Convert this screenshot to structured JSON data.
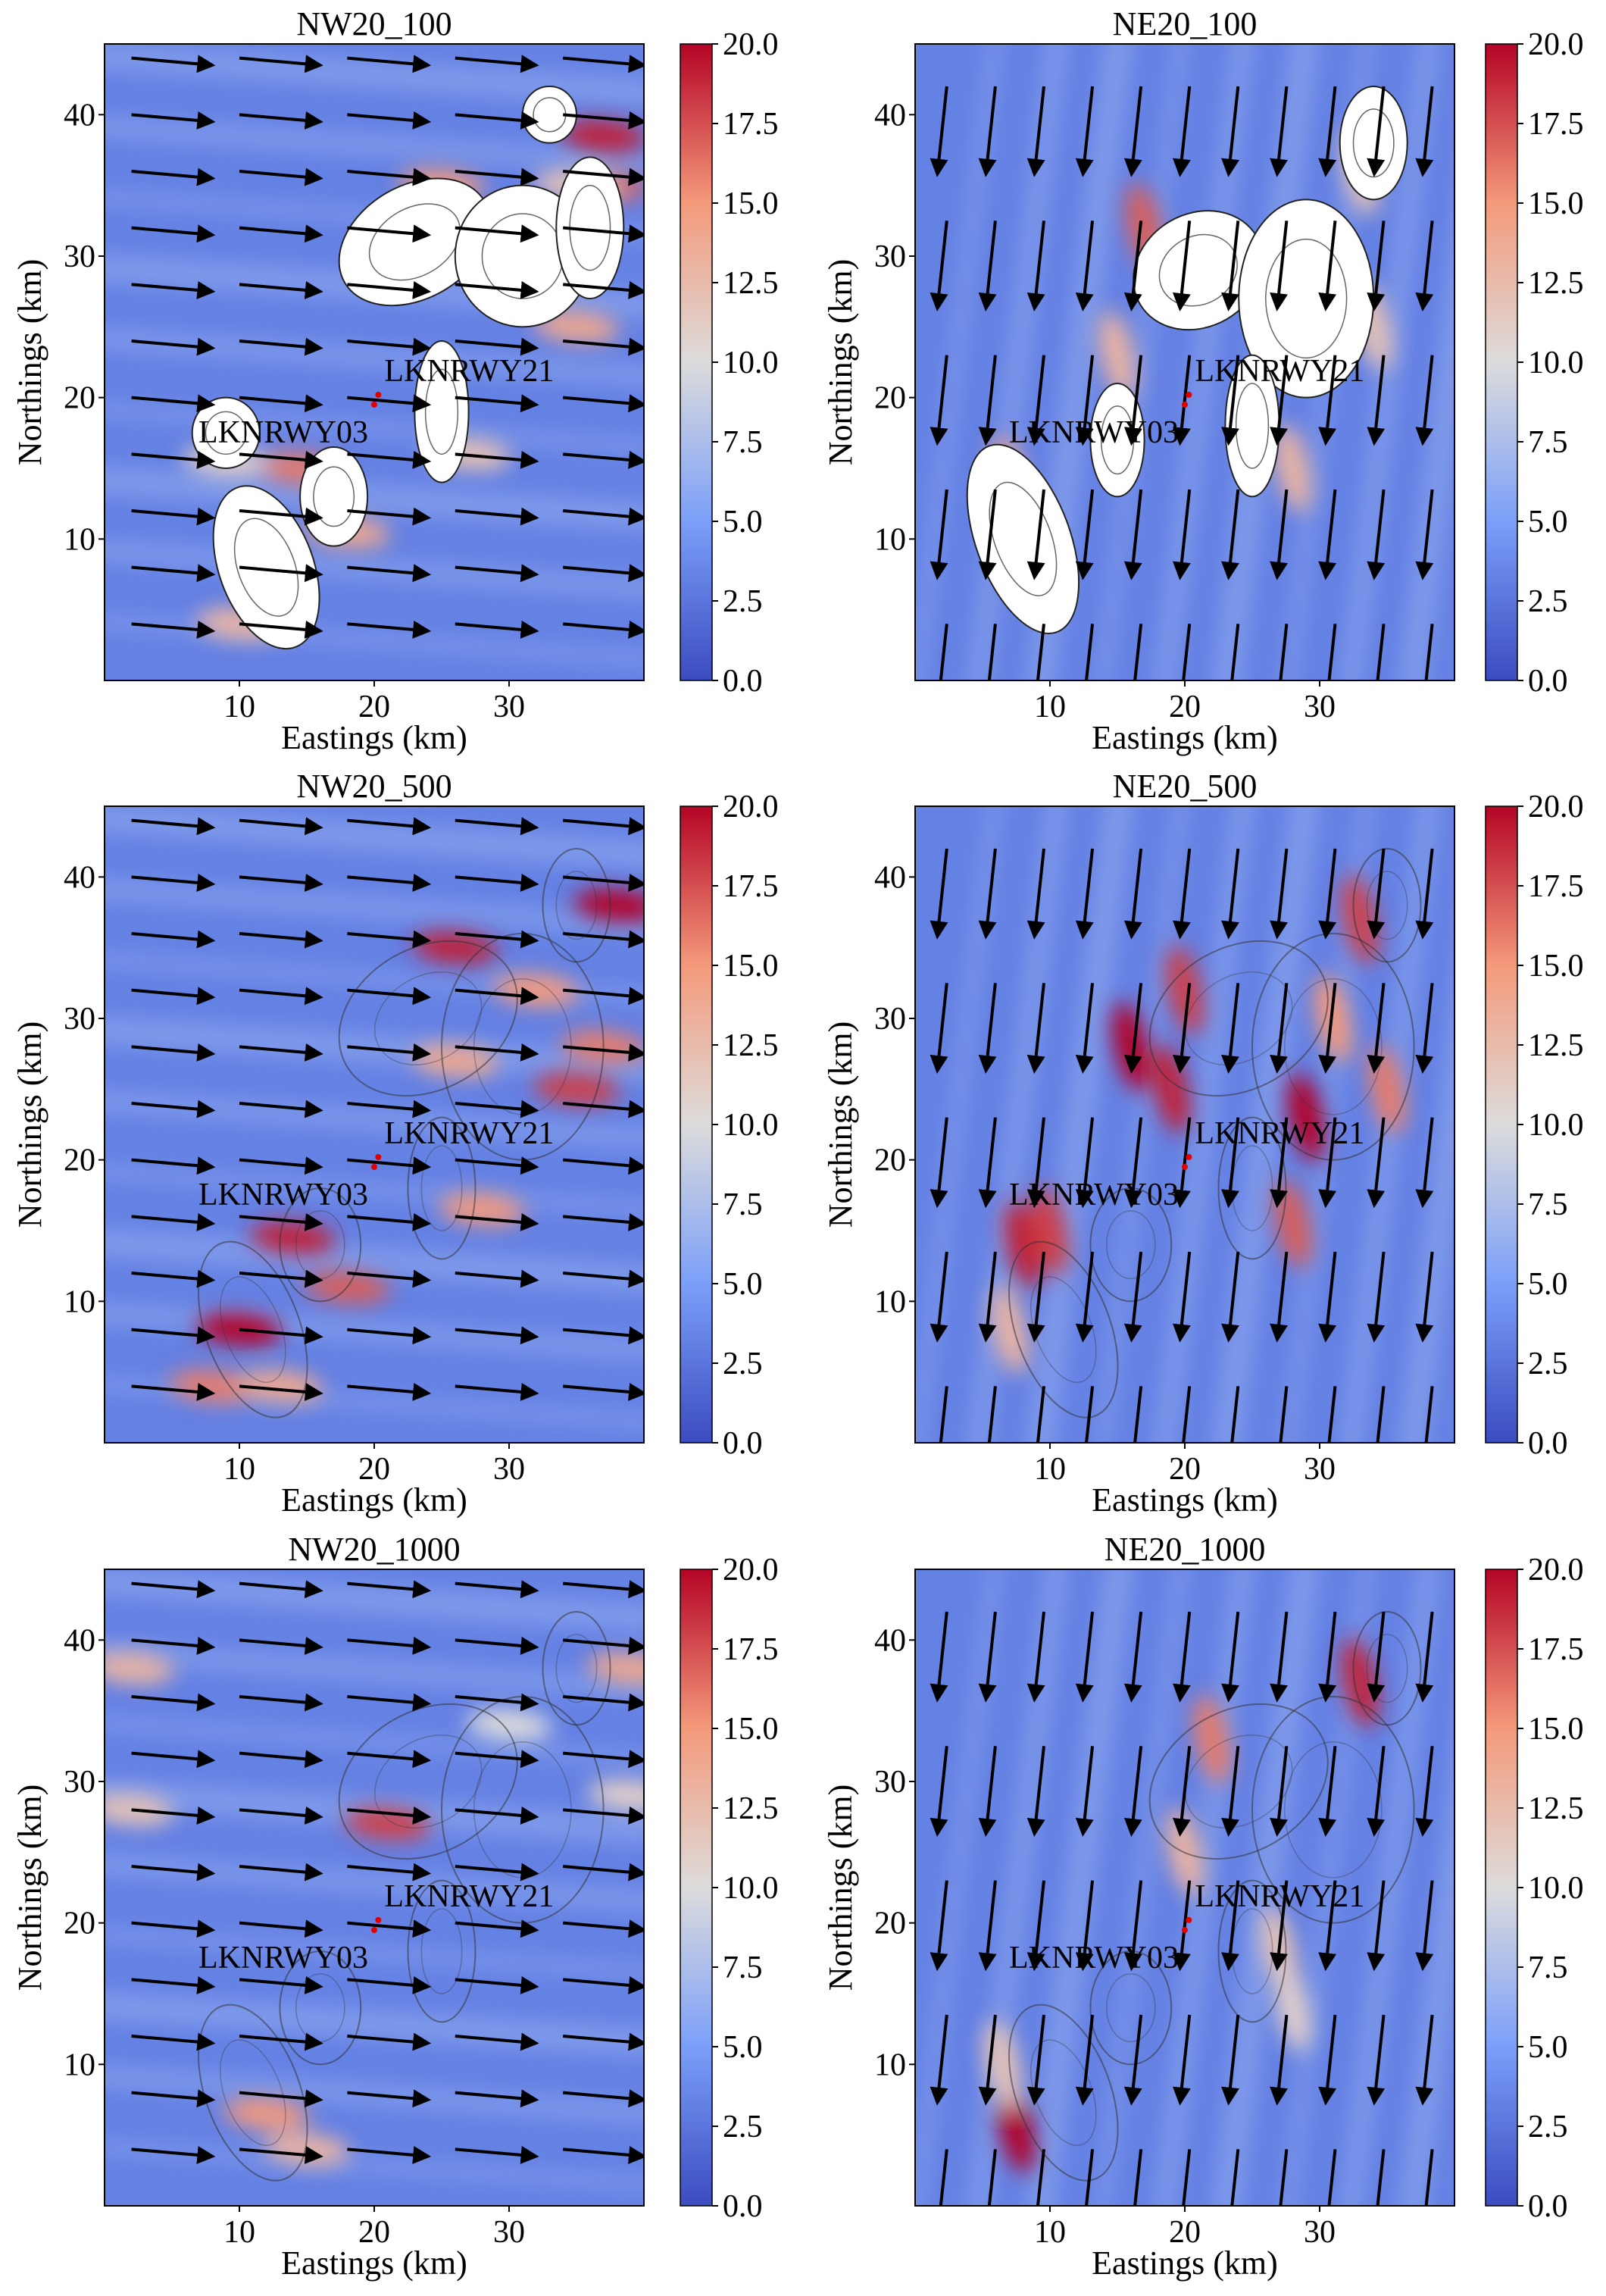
{
  "chart_data": [
    {
      "type": "heatmap",
      "title": "NW20_100",
      "xlabel": "Eastings (km)",
      "ylabel": "Northings (km)",
      "xlim": [
        0,
        40
      ],
      "ylim": [
        0,
        45
      ],
      "xticks": [
        "10",
        "20",
        "30"
      ],
      "yticks": [
        "10",
        "20",
        "30",
        "40"
      ],
      "colorbar": {
        "range": [
          0.0,
          20.0
        ],
        "ticks": [
          "0.0",
          "2.5",
          "5.0",
          "7.5",
          "10.0",
          "12.5",
          "15.0",
          "17.5",
          "20.0"
        ],
        "colormap": "coolwarm"
      },
      "wind_direction": "NW",
      "runways": [
        {
          "label": "LKNRWY03",
          "x": 20.0,
          "y": 19.5
        },
        {
          "label": "LKNRWY21",
          "x": 20.3,
          "y": 20.2
        }
      ],
      "hotspots": [
        {
          "x": 37,
          "y": 38.5,
          "v": 19
        },
        {
          "x": 37,
          "y": 35,
          "v": 17
        },
        {
          "x": 25,
          "y": 35,
          "v": 15
        },
        {
          "x": 14.5,
          "y": 15,
          "v": 16
        },
        {
          "x": 9,
          "y": 15.5,
          "v": 11
        },
        {
          "x": 18,
          "y": 10.5,
          "v": 14
        },
        {
          "x": 10,
          "y": 4,
          "v": 13
        },
        {
          "x": 35,
          "y": 25,
          "v": 14
        },
        {
          "x": 27,
          "y": 16,
          "v": 12
        },
        {
          "x": 35,
          "y": 35,
          "v": 12
        }
      ],
      "land": [
        {
          "x": 12,
          "y": 8,
          "rx": 3.5,
          "ry": 6,
          "rot": -20
        },
        {
          "x": 9,
          "y": 17.5,
          "rx": 2.5,
          "ry": 2.5,
          "rot": 0
        },
        {
          "x": 17,
          "y": 13,
          "rx": 2.5,
          "ry": 3.5,
          "rot": 0
        },
        {
          "x": 23,
          "y": 31,
          "rx": 6,
          "ry": 4,
          "rot": -30
        },
        {
          "x": 31,
          "y": 30,
          "rx": 5,
          "ry": 5,
          "rot": 0
        },
        {
          "x": 36,
          "y": 32,
          "rx": 2.5,
          "ry": 5,
          "rot": 0
        },
        {
          "x": 33,
          "y": 40,
          "rx": 2,
          "ry": 2,
          "rot": 0
        },
        {
          "x": 25,
          "y": 19,
          "rx": 2,
          "ry": 5,
          "rot": 0
        }
      ]
    },
    {
      "type": "heatmap",
      "title": "NE20_100",
      "xlabel": "Eastings (km)",
      "ylabel": "Northings (km)",
      "xlim": [
        0,
        40
      ],
      "ylim": [
        0,
        45
      ],
      "xticks": [
        "10",
        "20",
        "30"
      ],
      "yticks": [
        "10",
        "20",
        "30",
        "40"
      ],
      "colorbar": {
        "range": [
          0.0,
          20.0
        ],
        "ticks": [
          "0.0",
          "2.5",
          "5.0",
          "7.5",
          "10.0",
          "12.5",
          "15.0",
          "17.5",
          "20.0"
        ],
        "colormap": "coolwarm"
      },
      "wind_direction": "NE",
      "runways": [
        {
          "label": "LKNRWY03",
          "x": 20.0,
          "y": 19.5
        },
        {
          "label": "LKNRWY21",
          "x": 20.3,
          "y": 20.2
        }
      ],
      "hotspots": [
        {
          "x": 7,
          "y": 14,
          "v": 15
        },
        {
          "x": 15,
          "y": 23,
          "v": 13
        },
        {
          "x": 17,
          "y": 32,
          "v": 17
        },
        {
          "x": 34,
          "y": 25,
          "v": 12
        },
        {
          "x": 28,
          "y": 15,
          "v": 13
        },
        {
          "x": 33,
          "y": 36,
          "v": 12
        }
      ],
      "land": [
        {
          "x": 8,
          "y": 10,
          "rx": 3.5,
          "ry": 7,
          "rot": -20
        },
        {
          "x": 15,
          "y": 17,
          "rx": 2,
          "ry": 4,
          "rot": 0
        },
        {
          "x": 21,
          "y": 29,
          "rx": 5,
          "ry": 4,
          "rot": -30
        },
        {
          "x": 29,
          "y": 27,
          "rx": 5,
          "ry": 7,
          "rot": 0
        },
        {
          "x": 34,
          "y": 38,
          "rx": 2.5,
          "ry": 4,
          "rot": 0
        },
        {
          "x": 25,
          "y": 18,
          "rx": 2,
          "ry": 5,
          "rot": 0
        }
      ]
    },
    {
      "type": "heatmap",
      "title": "NW20_500",
      "xlabel": "Eastings (km)",
      "ylabel": "Northings (km)",
      "xlim": [
        0,
        40
      ],
      "ylim": [
        0,
        45
      ],
      "xticks": [
        "10",
        "20",
        "30"
      ],
      "yticks": [
        "10",
        "20",
        "30",
        "40"
      ],
      "colorbar": {
        "range": [
          0.0,
          20.0
        ],
        "ticks": [
          "0.0",
          "2.5",
          "5.0",
          "7.5",
          "10.0",
          "12.5",
          "15.0",
          "17.5",
          "20.0"
        ],
        "colormap": "coolwarm"
      },
      "wind_direction": "NW",
      "runways": [
        {
          "label": "LKNRWY03",
          "x": 20.0,
          "y": 19.5
        },
        {
          "label": "LKNRWY21",
          "x": 20.3,
          "y": 20.2
        }
      ],
      "hotspots": [
        {
          "x": 38,
          "y": 38,
          "v": 20
        },
        {
          "x": 26,
          "y": 35,
          "v": 19
        },
        {
          "x": 32,
          "y": 32,
          "v": 15
        },
        {
          "x": 37,
          "y": 28,
          "v": 16
        },
        {
          "x": 35,
          "y": 25,
          "v": 18
        },
        {
          "x": 26,
          "y": 27,
          "v": 14
        },
        {
          "x": 14,
          "y": 14.5,
          "v": 19
        },
        {
          "x": 10,
          "y": 8,
          "v": 20
        },
        {
          "x": 18,
          "y": 11,
          "v": 17
        },
        {
          "x": 28,
          "y": 16.5,
          "v": 15
        },
        {
          "x": 8,
          "y": 4,
          "v": 16
        },
        {
          "x": 13,
          "y": 4,
          "v": 14
        }
      ],
      "land": []
    },
    {
      "type": "heatmap",
      "title": "NE20_500",
      "xlabel": "Eastings (km)",
      "ylabel": "Northings (km)",
      "xlim": [
        0,
        40
      ],
      "ylim": [
        0,
        45
      ],
      "xticks": [
        "10",
        "20",
        "30"
      ],
      "yticks": [
        "10",
        "20",
        "30",
        "40"
      ],
      "colorbar": {
        "range": [
          0.0,
          20.0
        ],
        "ticks": [
          "0.0",
          "2.5",
          "5.0",
          "7.5",
          "10.0",
          "12.5",
          "15.0",
          "17.5",
          "20.0"
        ],
        "colormap": "coolwarm"
      },
      "wind_direction": "NE",
      "runways": [
        {
          "label": "LKNRWY03",
          "x": 20.0,
          "y": 19.5
        },
        {
          "label": "LKNRWY21",
          "x": 20.3,
          "y": 20.2
        }
      ],
      "hotspots": [
        {
          "x": 8,
          "y": 14,
          "v": 19
        },
        {
          "x": 10,
          "y": 15,
          "v": 18
        },
        {
          "x": 16,
          "y": 28,
          "v": 20
        },
        {
          "x": 19,
          "y": 25,
          "v": 19
        },
        {
          "x": 20,
          "y": 32,
          "v": 18
        },
        {
          "x": 29,
          "y": 23,
          "v": 20
        },
        {
          "x": 28,
          "y": 15.5,
          "v": 17
        },
        {
          "x": 33,
          "y": 37,
          "v": 18
        },
        {
          "x": 31,
          "y": 30,
          "v": 15
        },
        {
          "x": 35,
          "y": 25,
          "v": 16
        },
        {
          "x": 7,
          "y": 8,
          "v": 13
        }
      ],
      "land": []
    },
    {
      "type": "heatmap",
      "title": "NW20_1000",
      "xlabel": "Eastings (km)",
      "ylabel": "Northings (km)",
      "xlim": [
        0,
        40
      ],
      "ylim": [
        0,
        45
      ],
      "xticks": [
        "10",
        "20",
        "30"
      ],
      "yticks": [
        "10",
        "20",
        "30",
        "40"
      ],
      "colorbar": {
        "range": [
          0.0,
          20.0
        ],
        "ticks": [
          "0.0",
          "2.5",
          "5.0",
          "7.5",
          "10.0",
          "12.5",
          "15.0",
          "17.5",
          "20.0"
        ],
        "colormap": "coolwarm"
      },
      "wind_direction": "NW",
      "runways": [
        {
          "label": "LKNRWY03",
          "x": 20.0,
          "y": 19.5
        },
        {
          "label": "LKNRWY21",
          "x": 20.3,
          "y": 20.2
        }
      ],
      "hotspots": [
        {
          "x": 21,
          "y": 27,
          "v": 18
        },
        {
          "x": 12,
          "y": 6.5,
          "v": 15
        },
        {
          "x": 15,
          "y": 4,
          "v": 13
        },
        {
          "x": 2,
          "y": 38,
          "v": 13
        },
        {
          "x": 2,
          "y": 28,
          "v": 12
        },
        {
          "x": 39,
          "y": 38,
          "v": 14
        },
        {
          "x": 39,
          "y": 29,
          "v": 11
        },
        {
          "x": 30,
          "y": 34,
          "v": 10
        }
      ],
      "land": []
    },
    {
      "type": "heatmap",
      "title": "NE20_1000",
      "xlabel": "Eastings (km)",
      "ylabel": "Northings (km)",
      "xlim": [
        0,
        40
      ],
      "ylim": [
        0,
        45
      ],
      "xticks": [
        "10",
        "20",
        "30"
      ],
      "yticks": [
        "10",
        "20",
        "30",
        "40"
      ],
      "colorbar": {
        "range": [
          0.0,
          20.0
        ],
        "ticks": [
          "0.0",
          "2.5",
          "5.0",
          "7.5",
          "10.0",
          "12.5",
          "15.0",
          "17.5",
          "20.0"
        ],
        "colormap": "coolwarm"
      },
      "wind_direction": "NE",
      "runways": [
        {
          "label": "LKNRWY03",
          "x": 20.0,
          "y": 19.5
        },
        {
          "label": "LKNRWY21",
          "x": 20.3,
          "y": 20.2
        }
      ],
      "hotspots": [
        {
          "x": 7.5,
          "y": 5.5,
          "v": 20
        },
        {
          "x": 6.5,
          "y": 10,
          "v": 12
        },
        {
          "x": 33,
          "y": 37,
          "v": 19
        },
        {
          "x": 22,
          "y": 33,
          "v": 16
        },
        {
          "x": 20,
          "y": 25,
          "v": 13
        },
        {
          "x": 27,
          "y": 18,
          "v": 12
        },
        {
          "x": 28,
          "y": 14,
          "v": 11
        }
      ],
      "land": []
    }
  ]
}
